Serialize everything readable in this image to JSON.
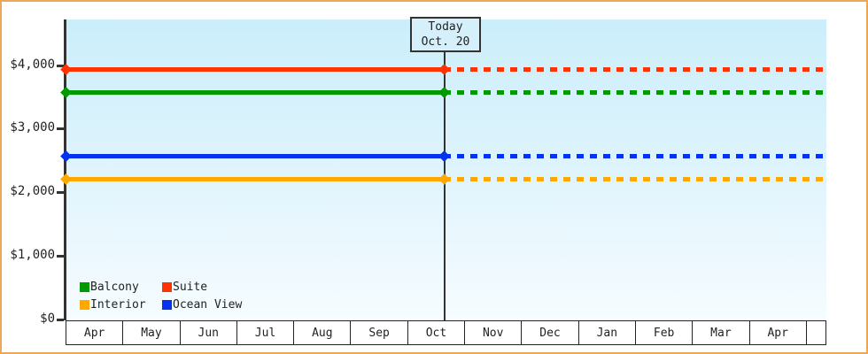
{
  "chart_data": {
    "type": "line",
    "title": "",
    "y_axis": {
      "tick_labels": [
        "$4,000",
        "$3,000",
        "$2,000",
        "$1,000",
        "$0"
      ],
      "tick_values": [
        4000,
        3000,
        2000,
        1000,
        0
      ],
      "ylim": [
        0,
        4700
      ],
      "grid": "off"
    },
    "x_axis": {
      "categories": [
        "Apr",
        "May",
        "Jun",
        "Jul",
        "Aug",
        "Sep",
        "Oct",
        "Nov",
        "Dec",
        "Jan",
        "Feb",
        "Mar",
        "Apr"
      ]
    },
    "today": {
      "line1": "Today",
      "line2": "Oct. 20",
      "month_index": 6,
      "day_fraction": 0.645
    },
    "series": [
      {
        "name": "Suite",
        "color": "#ff3300",
        "value": 3930
      },
      {
        "name": "Balcony",
        "color": "#009900",
        "value": 3570
      },
      {
        "name": "Ocean View",
        "color": "#0433f0",
        "value": 2570
      },
      {
        "name": "Interior",
        "color": "#ffa800",
        "value": 2210
      }
    ],
    "line_style": {
      "before_today": "solid",
      "after_today": "dashed",
      "marker": "diamond"
    },
    "legend": {
      "position": "bottom-left",
      "rows": [
        [
          {
            "label": "Balcony",
            "color": "#009900"
          },
          {
            "label": "Suite",
            "color": "#ff3300"
          }
        ],
        [
          {
            "label": "Interior",
            "color": "#ffa800"
          },
          {
            "label": "Ocean View",
            "color": "#0433f0"
          }
        ]
      ]
    }
  },
  "colors": {
    "frame_border": "#eca757",
    "axis": "#333333",
    "plot_bg_top": "#cbeefb",
    "plot_bg_bottom": "#f6fcff",
    "today_box_bg": "#d5f0fb",
    "text": "#222222"
  }
}
